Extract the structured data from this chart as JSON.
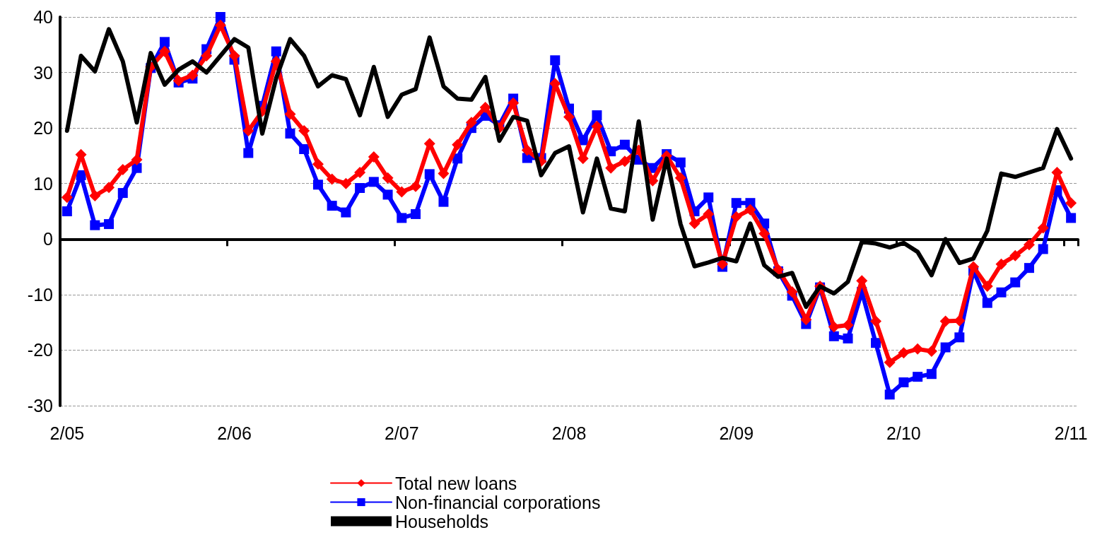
{
  "chart_data": {
    "type": "line",
    "categories": [
      "2/05",
      null,
      null,
      null,
      null,
      null,
      null,
      null,
      null,
      null,
      null,
      null,
      "2/06",
      null,
      null,
      null,
      null,
      null,
      null,
      null,
      null,
      null,
      null,
      null,
      "2/07",
      null,
      null,
      null,
      null,
      null,
      null,
      null,
      null,
      null,
      null,
      null,
      "2/08",
      null,
      null,
      null,
      null,
      null,
      null,
      null,
      null,
      null,
      null,
      null,
      "2/09",
      null,
      null,
      null,
      null,
      null,
      null,
      null,
      null,
      null,
      null,
      null,
      "2/10",
      null,
      null,
      null,
      null,
      null,
      null,
      null,
      null,
      null,
      null,
      null,
      "2/11"
    ],
    "series": [
      {
        "name": "Total new loans",
        "color": "#ff0000",
        "marker": "diamond",
        "values": [
          7.5,
          15.2,
          7.8,
          9.3,
          12.5,
          14.3,
          31,
          33.8,
          28.5,
          29.5,
          33,
          38.5,
          33,
          19.5,
          23,
          32,
          22.5,
          19.5,
          13.5,
          10.8,
          10,
          12,
          14.8,
          11,
          8.5,
          9.5,
          17.2,
          11.8,
          17,
          21,
          23.7,
          20,
          24.5,
          16,
          14,
          28,
          22,
          14.5,
          20.3,
          12.8,
          14,
          16,
          10.5,
          15,
          11,
          2.8,
          4.5,
          -4.5,
          4,
          5.3,
          1,
          -5.5,
          -9.5,
          -14.5,
          -8.5,
          -15.8,
          -15.5,
          -7.5,
          -14.8,
          -22.2,
          -20.5,
          -19.8,
          -20.2,
          -14.8,
          -14.7,
          -5,
          -8.5,
          -4.5,
          -3,
          -1,
          2,
          12,
          6.5
        ]
      },
      {
        "name": "Non-financial corporations",
        "color": "#0000ff",
        "marker": "square",
        "values": [
          5,
          11.5,
          2.5,
          2.7,
          8.3,
          12.8,
          30.8,
          35.5,
          28.2,
          28.9,
          34.2,
          40,
          32.3,
          15.5,
          24,
          33.8,
          19,
          16.2,
          9.8,
          6,
          4.8,
          9.2,
          10.3,
          8,
          3.8,
          4.5,
          11.7,
          6.7,
          14.5,
          20,
          22.2,
          20.5,
          25.3,
          14.6,
          14.6,
          32.2,
          23.5,
          17.8,
          22.3,
          15.8,
          17,
          14.3,
          12.8,
          15.3,
          13.8,
          5,
          7.5,
          -5,
          6.5,
          6.5,
          2.8,
          -5.8,
          -10.2,
          -15.3,
          -8.7,
          -17.5,
          -17.9,
          -9.5,
          -18.7,
          -28,
          -25.8,
          -24.8,
          -24.3,
          -19.5,
          -17.7,
          -5.7,
          -11.5,
          -9.6,
          -7.8,
          -5.2,
          -1.8,
          8.8,
          3.8
        ]
      },
      {
        "name": "Households",
        "color": "#000000",
        "marker": "none",
        "values": [
          19.5,
          33,
          30.2,
          37.8,
          32,
          21,
          33.5,
          27.8,
          30.5,
          32,
          30,
          33,
          36,
          34.5,
          19,
          29,
          36,
          33,
          27.5,
          29.5,
          28.8,
          22.3,
          31,
          22,
          26,
          27,
          36.3,
          27.5,
          25.3,
          25.1,
          29.2,
          17.7,
          22,
          21.3,
          11.5,
          15.5,
          16.7,
          4.8,
          14.5,
          5.5,
          5,
          21.2,
          3.5,
          14.5,
          2.7,
          -4.9,
          -4.2,
          -3.4,
          -4,
          2.8,
          -4.7,
          -6.8,
          -6.1,
          -12.2,
          -8.5,
          -9.8,
          -7.7,
          -0.5,
          -0.8,
          -1.5,
          -0.7,
          -2.3,
          -6.5,
          0,
          -4.3,
          -3.5,
          1.5,
          11.8,
          11.2,
          12,
          12.8,
          19.8,
          14.5
        ]
      }
    ],
    "ylim": [
      -30,
      40
    ],
    "yticks": [
      -30,
      -20,
      -10,
      0,
      10,
      20,
      30,
      40
    ],
    "grid": "y",
    "legend": "bottom",
    "line_style": "solid"
  }
}
